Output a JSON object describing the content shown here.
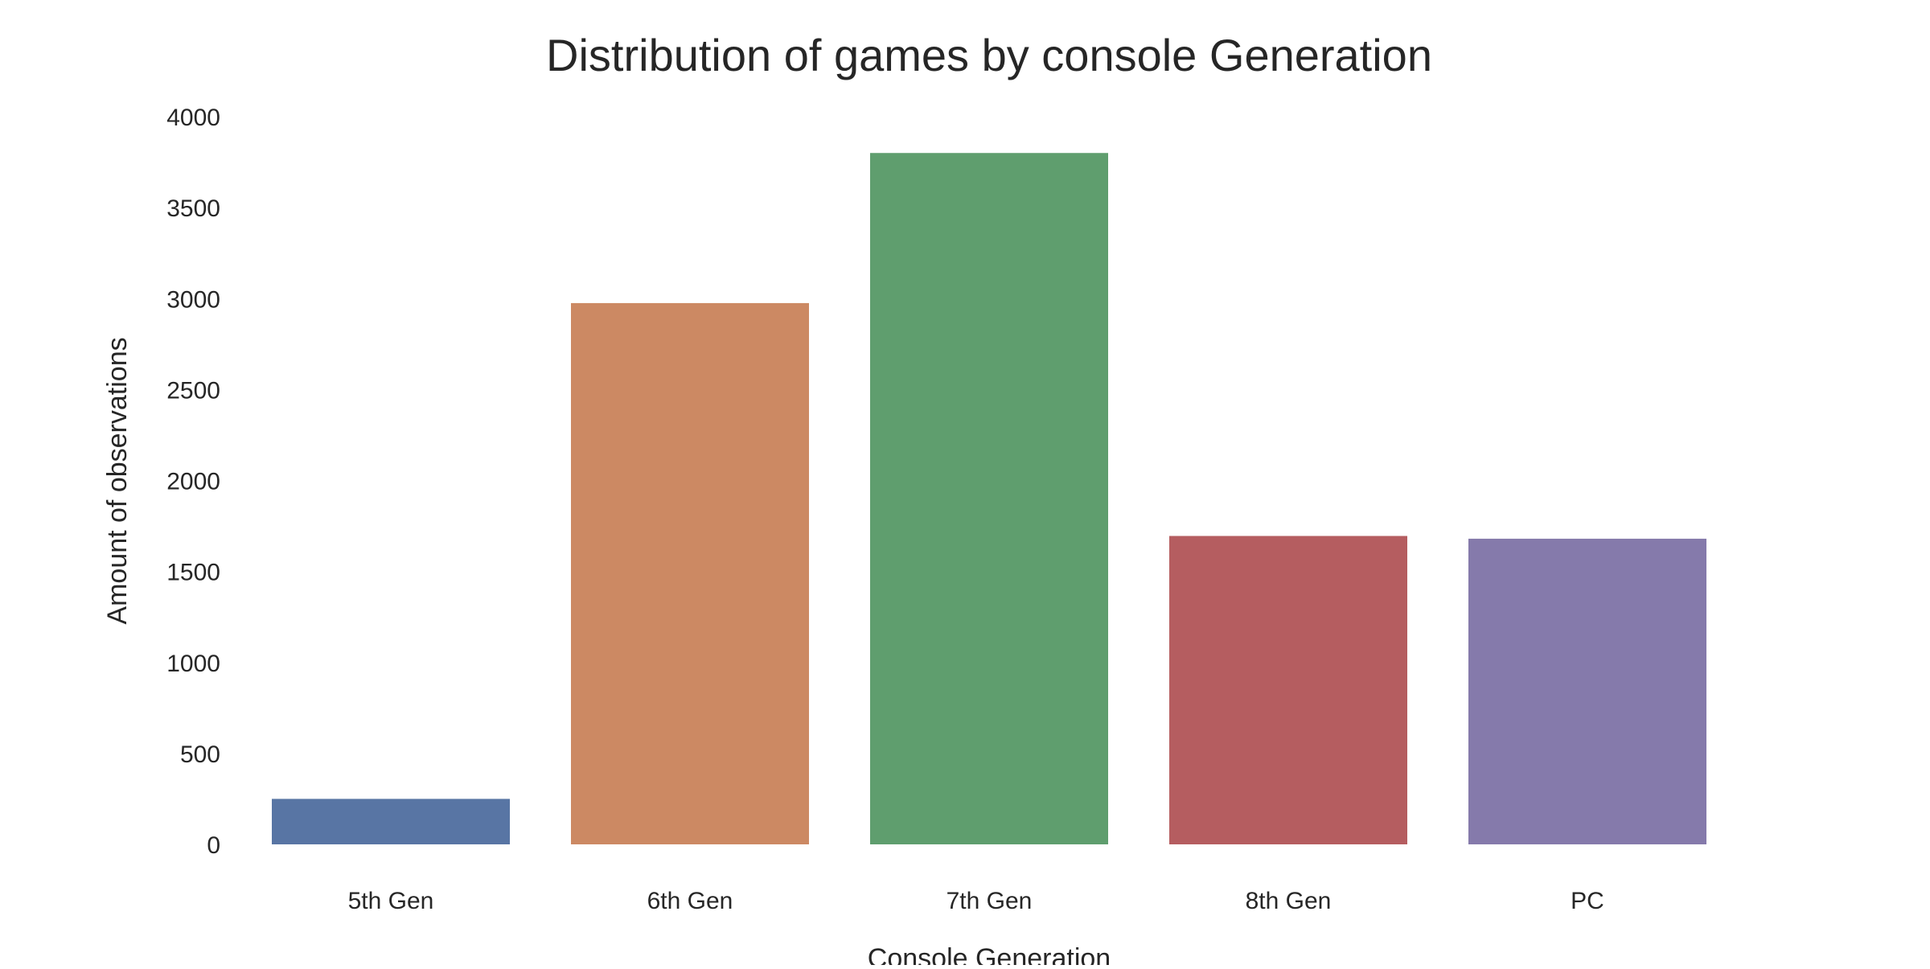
{
  "chart_data": {
    "type": "bar",
    "title": "Distribution of games by console Generation",
    "xlabel": "Console Generation",
    "ylabel": "Amount of observations",
    "categories": [
      "5th Gen",
      "6th Gen",
      "7th Gen",
      "8th Gen",
      "PC"
    ],
    "values": [
      250,
      2975,
      3800,
      1695,
      1680
    ],
    "colors": [
      "#5875a4",
      "#cc8963",
      "#5f9e6e",
      "#b55d60",
      "#857aab"
    ],
    "ylim": [
      0,
      4000
    ],
    "yticks": [
      0,
      500,
      1000,
      1500,
      2000,
      2500,
      3000,
      3500,
      4000
    ],
    "grid": false,
    "legend": "none"
  }
}
